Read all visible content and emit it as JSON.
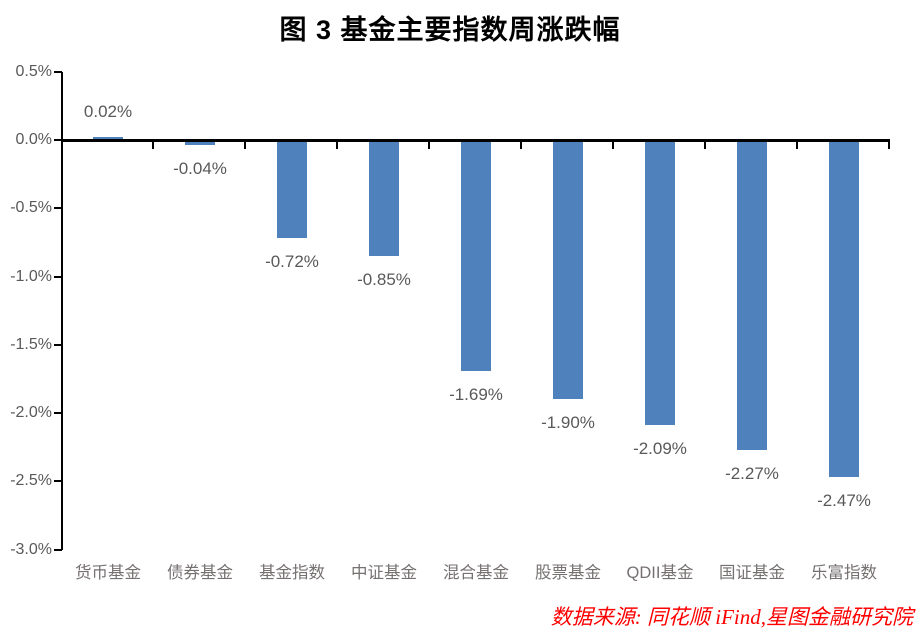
{
  "title": "图 3 基金主要指数周涨跌幅",
  "source": "数据来源: 同花顺 iFind,星图金融研究院",
  "colors": {
    "bar": "#4F81BD",
    "axis": "#000000",
    "value_label": "#595959",
    "category_label": "#767171",
    "y_tick_label": "#595959",
    "source_text": "#FE0000",
    "background": "#FFFFFF"
  },
  "chart_data": {
    "type": "bar",
    "title": "图 3 基金主要指数周涨跌幅",
    "categories": [
      "货币基金",
      "债券基金",
      "基金指数",
      "中证基金",
      "混合基金",
      "股票基金",
      "QDII基金",
      "国证基金",
      "乐富指数"
    ],
    "values": [
      0.02,
      -0.04,
      -0.72,
      -0.85,
      -1.69,
      -1.9,
      -2.09,
      -2.27,
      -2.47
    ],
    "value_labels": [
      "0.02%",
      "-0.04%",
      "-0.72%",
      "-0.85%",
      "-1.69%",
      "-1.90%",
      "-2.09%",
      "-2.27%",
      "-2.47%"
    ],
    "xlabel": "",
    "ylabel": "",
    "ylim": [
      -3.0,
      0.5
    ],
    "y_tick_values": [
      0.5,
      0.0,
      -0.5,
      -1.0,
      -1.5,
      -2.0,
      -2.5,
      -3.0
    ],
    "y_tick_labels": [
      "0.5%",
      "0.0%",
      "-0.5%",
      "-1.0%",
      "-1.5%",
      "-2.0%",
      "-2.5%",
      "-3.0%"
    ],
    "grid": false,
    "legend": false,
    "bar_color": "#4F81BD",
    "annotations": [
      "数据来源: 同花顺 iFind,星图金融研究院"
    ]
  }
}
